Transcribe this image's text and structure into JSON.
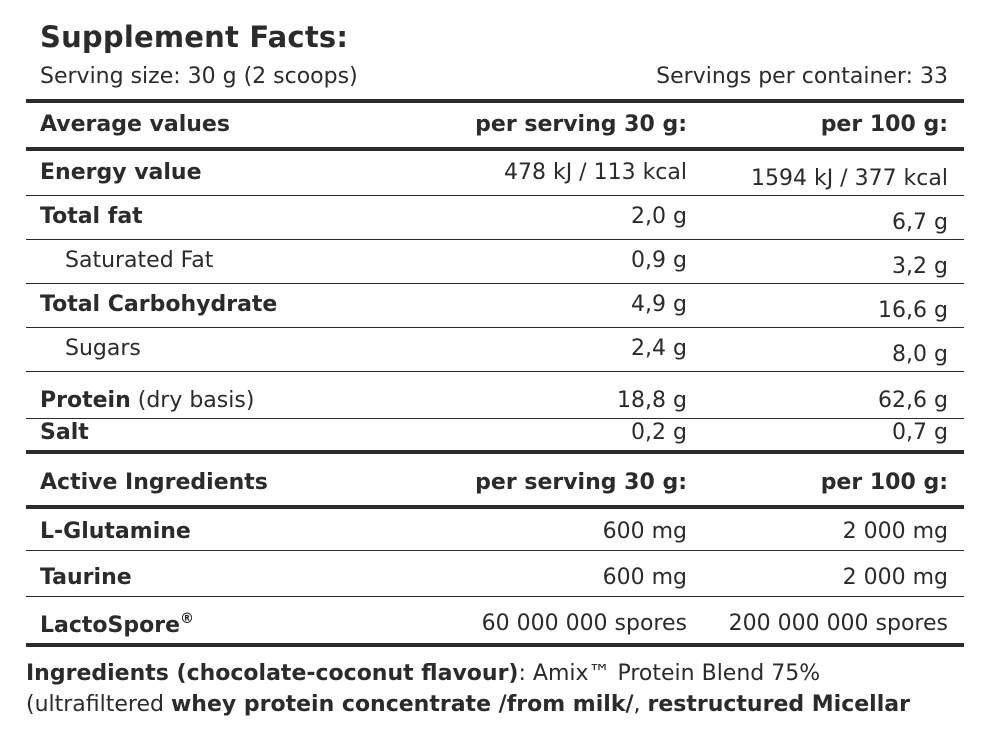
{
  "header": {
    "title": "Supplement Facts:",
    "serving_size": "Serving size: 30 g (2 scoops)",
    "servings_per_container": "Servings per container: 33"
  },
  "nutrition": {
    "col_label": "Average values",
    "col_serving": "per serving 30 g:",
    "col_100g": "per 100 g:",
    "rows": [
      {
        "label": "Energy value",
        "per_serving": "478 kJ / 113 kcal",
        "per_100g": "1594 kJ / 377 kcal"
      },
      {
        "label": "Total fat",
        "per_serving": "2,0 g",
        "per_100g": "6,7 g"
      },
      {
        "label": "Saturated Fat",
        "per_serving": "0,9 g",
        "per_100g": "3,2 g"
      },
      {
        "label": "Total Carbohydrate",
        "per_serving": "4,9 g",
        "per_100g": "16,6 g"
      },
      {
        "label": "Sugars",
        "per_serving": "2,4 g",
        "per_100g": "8,0 g"
      },
      {
        "label": "Protein",
        "label_note": "(dry basis)",
        "per_serving": "18,8 g",
        "per_100g": "62,6 g"
      },
      {
        "label": "Salt",
        "per_serving": "0,2 g",
        "per_100g": "0,7 g"
      }
    ]
  },
  "active": {
    "col_label": "Active Ingredients",
    "col_serving": "per serving 30 g:",
    "col_100g": "per 100 g:",
    "rows": [
      {
        "label": "L-Glutamine",
        "per_serving": "600 mg",
        "per_100g": "2 000 mg"
      },
      {
        "label": "Taurine",
        "per_serving": "600 mg",
        "per_100g": "2 000 mg"
      },
      {
        "label": "LactoSpore",
        "label_mark": "®",
        "per_serving": "60 000 000 spores",
        "per_100g": "200 000 000 spores"
      }
    ]
  },
  "ingredients": {
    "heading": "Ingredients (chocolate-coconut flavour)",
    "sep": ": Amix™ Protein Blend 75%",
    "open": "(ultrafiltered ",
    "whey": "whey protein concentrate /from milk/",
    "comma": ", ",
    "micellar": "restructured Micellar"
  }
}
